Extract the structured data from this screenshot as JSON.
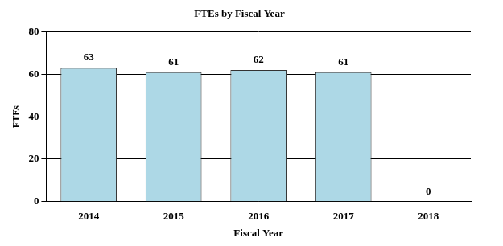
{
  "chart_data": {
    "type": "bar",
    "title": "FTEs by Fiscal Year",
    "x_label": "Fiscal Year",
    "y_label": "FTEs",
    "categories": [
      "2014",
      "2015",
      "2016",
      "2017",
      "2018"
    ],
    "values": [
      63,
      61,
      62,
      61,
      0
    ],
    "color": "#add8e6",
    "ylim": [
      0,
      80
    ],
    "yticks": [
      0,
      20,
      40,
      60,
      80
    ],
    "grid": true,
    "data_labels": true
  }
}
